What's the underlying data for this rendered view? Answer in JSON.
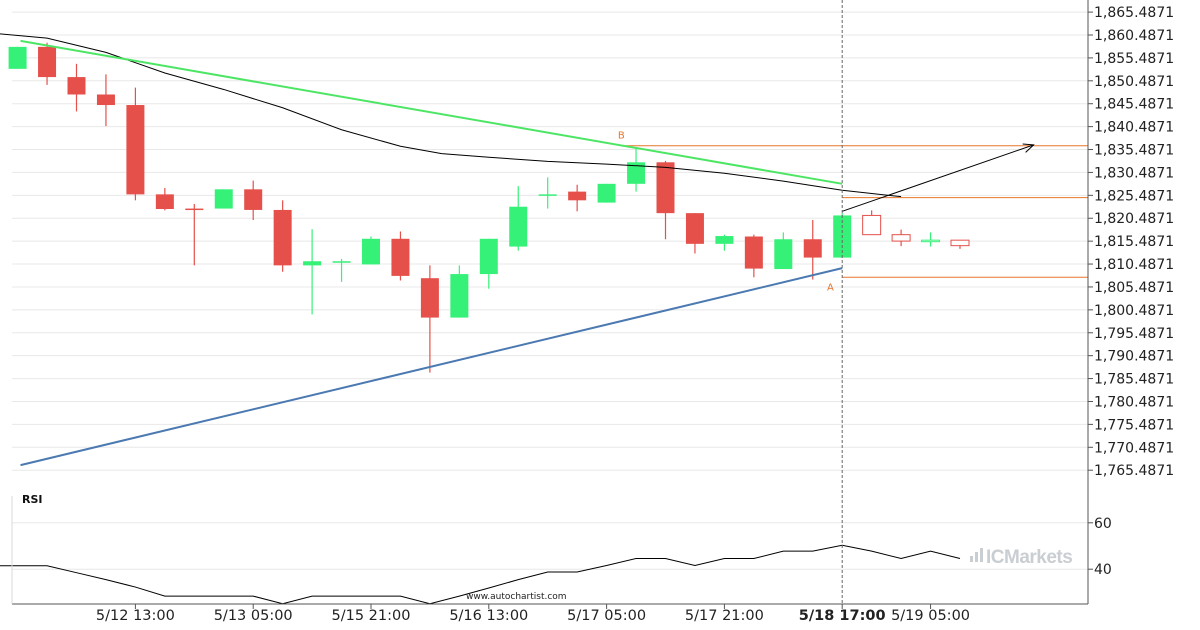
{
  "chart_data": {
    "type": "candlestick",
    "price_axis": {
      "ticks": [
        "1,865.4871",
        "1,860.4871",
        "1,855.4871",
        "1,850.4871",
        "1,845.4871",
        "1,840.4871",
        "1,835.4871",
        "1,830.4871",
        "1,825.4871",
        "1,820.4871",
        "1,815.4871",
        "1,810.4871",
        "1,805.4871",
        "1,800.4871",
        "1,795.4871",
        "1,790.4871",
        "1,785.4871",
        "1,780.4871",
        "1,775.4871",
        "1,770.4871",
        "1,765.4871"
      ],
      "range": [
        1761.6,
        1866.6
      ]
    },
    "x_axis": {
      "ticks": [
        {
          "label": "5/12 13:00",
          "index": 4,
          "bold": false
        },
        {
          "label": "5/13 05:00",
          "index": 8,
          "bold": false
        },
        {
          "label": "5/15 21:00",
          "index": 12,
          "bold": false
        },
        {
          "label": "5/16 13:00",
          "index": 16,
          "bold": false
        },
        {
          "label": "5/17 05:00",
          "index": 20,
          "bold": false
        },
        {
          "label": "5/17 21:00",
          "index": 24,
          "bold": false
        },
        {
          "label": "5/18 17:00",
          "index": 28,
          "bold": true
        },
        {
          "label": "5/19 05:00",
          "index": 31,
          "bold": false
        }
      ]
    },
    "candles": [
      {
        "o": 1853.1,
        "h": 1857.9,
        "l": 1853.1,
        "c": 1857.9
      },
      {
        "o": 1857.9,
        "h": 1858.8,
        "l": 1849.6,
        "c": 1851.3
      },
      {
        "o": 1851.3,
        "h": 1854.2,
        "l": 1843.8,
        "c": 1847.5
      },
      {
        "o": 1847.5,
        "h": 1851.9,
        "l": 1840.6,
        "c": 1845.2
      },
      {
        "o": 1845.2,
        "h": 1849.0,
        "l": 1824.4,
        "c": 1825.7
      },
      {
        "o": 1825.7,
        "h": 1827.1,
        "l": 1822.2,
        "c": 1822.5
      },
      {
        "o": 1822.6,
        "h": 1823.6,
        "l": 1810.2,
        "c": 1822.3
      },
      {
        "o": 1822.6,
        "h": 1826.8,
        "l": 1822.6,
        "c": 1826.8
      },
      {
        "o": 1826.8,
        "h": 1828.7,
        "l": 1820.1,
        "c": 1822.3
      },
      {
        "o": 1822.3,
        "h": 1824.4,
        "l": 1808.8,
        "c": 1810.2
      },
      {
        "o": 1810.2,
        "h": 1818.1,
        "l": 1799.5,
        "c": 1811.1
      },
      {
        "o": 1810.9,
        "h": 1811.6,
        "l": 1806.6,
        "c": 1811.1
      },
      {
        "o": 1810.4,
        "h": 1816.5,
        "l": 1810.4,
        "c": 1816.0
      },
      {
        "o": 1816.0,
        "h": 1817.6,
        "l": 1806.9,
        "c": 1807.9
      },
      {
        "o": 1807.4,
        "h": 1810.2,
        "l": 1786.8,
        "c": 1798.8
      },
      {
        "o": 1798.8,
        "h": 1810.2,
        "l": 1798.8,
        "c": 1808.3
      },
      {
        "o": 1808.3,
        "h": 1816.0,
        "l": 1805.1,
        "c": 1816.0
      },
      {
        "o": 1814.3,
        "h": 1827.5,
        "l": 1813.4,
        "c": 1823.0
      },
      {
        "o": 1825.4,
        "h": 1829.4,
        "l": 1822.6,
        "c": 1825.7
      },
      {
        "o": 1826.3,
        "h": 1827.8,
        "l": 1822.0,
        "c": 1824.4
      },
      {
        "o": 1823.9,
        "h": 1828.0,
        "l": 1823.9,
        "c": 1828.0
      },
      {
        "o": 1828.0,
        "h": 1835.8,
        "l": 1826.3,
        "c": 1832.7
      },
      {
        "o": 1832.7,
        "h": 1833.0,
        "l": 1815.9,
        "c": 1821.6
      },
      {
        "o": 1821.6,
        "h": 1821.6,
        "l": 1812.8,
        "c": 1814.9
      },
      {
        "o": 1814.9,
        "h": 1816.9,
        "l": 1813.4,
        "c": 1816.6
      },
      {
        "o": 1816.5,
        "h": 1816.9,
        "l": 1807.6,
        "c": 1809.5
      },
      {
        "o": 1809.4,
        "h": 1817.4,
        "l": 1809.4,
        "c": 1815.9
      },
      {
        "o": 1815.9,
        "h": 1820.1,
        "l": 1807.1,
        "c": 1811.9
      },
      {
        "o": 1811.9,
        "h": 1821.6,
        "l": 1811.9,
        "c": 1821.1
      },
      {
        "o": 1821.1,
        "h": 1822.2,
        "l": 1816.9,
        "c": 1816.9
      },
      {
        "o": 1816.9,
        "h": 1818.0,
        "l": 1814.4,
        "c": 1815.5
      },
      {
        "o": 1815.6,
        "h": 1817.4,
        "l": 1814.3,
        "c": 1815.7
      },
      {
        "o": 1815.7,
        "h": 1815.7,
        "l": 1813.8,
        "c": 1814.5
      }
    ],
    "moving_average": [
      [
        -0.9,
        1860.9
      ],
      [
        1,
        1859.8
      ],
      [
        3,
        1856.7
      ],
      [
        5,
        1852.2
      ],
      [
        7,
        1848.6
      ],
      [
        9,
        1844.6
      ],
      [
        11,
        1839.8
      ],
      [
        13,
        1836.2
      ],
      [
        14.4,
        1834.6
      ],
      [
        16,
        1833.8
      ],
      [
        18,
        1832.9
      ],
      [
        20,
        1832.3
      ],
      [
        22,
        1831.6
      ],
      [
        24,
        1830.3
      ],
      [
        26,
        1828.6
      ],
      [
        28,
        1826.6
      ],
      [
        30,
        1825.2
      ]
    ],
    "resistance_line": {
      "from": [
        0.1,
        1859.2
      ],
      "to": [
        28,
        1828.0
      ]
    },
    "support_line": {
      "from": [
        0.1,
        1766.6
      ],
      "to": [
        28,
        1809.6
      ]
    },
    "projection_arrow": {
      "from": [
        28,
        1822.0
      ],
      "to": [
        34.5,
        1836.5
      ]
    },
    "levels": [
      {
        "value": 1836.3,
        "from_index": 20.5
      },
      {
        "value": 1825.0,
        "from_index": 28
      },
      {
        "value": 1807.6,
        "from_index": 28
      }
    ],
    "point_labels": [
      {
        "text": "B",
        "index": 20.5,
        "price": 1837.5,
        "position": "above"
      },
      {
        "text": "A",
        "index": 27.6,
        "price": 1806.5,
        "position": "below"
      }
    ],
    "current_marker_index": 28,
    "rsi": {
      "title": "RSI",
      "ticks": [
        60,
        40
      ],
      "range": [
        25,
        75
      ],
      "values": [
        [
          -0.9,
          41.5
        ],
        [
          0,
          41.5
        ],
        [
          1,
          41.5
        ],
        [
          2,
          38.5
        ],
        [
          3,
          35.5
        ],
        [
          4,
          32.3
        ],
        [
          5,
          28.4
        ],
        [
          6,
          28.4
        ],
        [
          7,
          28.4
        ],
        [
          8,
          28.4
        ],
        [
          9,
          25.1
        ],
        [
          10,
          28.4
        ],
        [
          11,
          28.4
        ],
        [
          12,
          28.4
        ],
        [
          13,
          28.4
        ],
        [
          14,
          25.1
        ],
        [
          15,
          28.4
        ],
        [
          16,
          31.9
        ],
        [
          17,
          35.5
        ],
        [
          18,
          38.8
        ],
        [
          19,
          38.8
        ],
        [
          20,
          41.6
        ],
        [
          21,
          44.6
        ],
        [
          22,
          44.6
        ],
        [
          23,
          41.6
        ],
        [
          24,
          44.6
        ],
        [
          25,
          44.6
        ],
        [
          26,
          47.8
        ],
        [
          27,
          47.8
        ],
        [
          28,
          50.3
        ],
        [
          29,
          47.8
        ],
        [
          30,
          44.6
        ],
        [
          31,
          47.8
        ],
        [
          32,
          44.6
        ]
      ]
    },
    "colors": {
      "bull": "#36f178",
      "bear": "#e5504a",
      "moving_average": "#000000",
      "resistance": "#4ce664",
      "support": "#4b79b1",
      "level": "#e8762d",
      "rsi": "#000000",
      "grid": "#e8e8e8"
    },
    "source_text": "www.autochartist.com",
    "brand": "ICMarkets"
  }
}
